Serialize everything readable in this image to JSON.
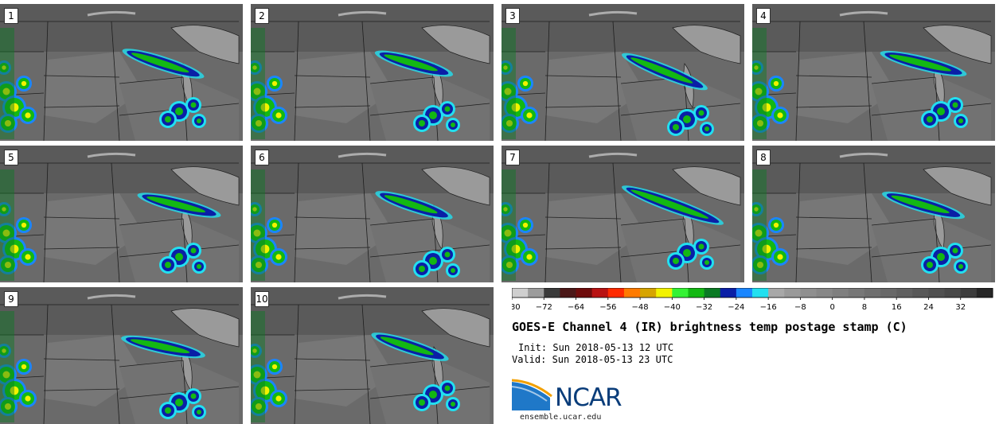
{
  "panels": [
    {
      "label": "1"
    },
    {
      "label": "2"
    },
    {
      "label": "3"
    },
    {
      "label": "4"
    },
    {
      "label": "5"
    },
    {
      "label": "6"
    },
    {
      "label": "7"
    },
    {
      "label": "8"
    },
    {
      "label": "9"
    },
    {
      "label": "10"
    }
  ],
  "chart_data": {
    "type": "heatmap",
    "title": "GOES-E Channel 4 (IR) brightness temp postage stamp (C)",
    "colorbar": {
      "range": [
        -80,
        40
      ],
      "tick_labels": [
        "−80",
        "−72",
        "−64",
        "−56",
        "−48",
        "−40",
        "−32",
        "−24",
        "−16",
        "−8",
        "0",
        "8",
        "16",
        "24",
        "32"
      ],
      "tick_values": [
        -80,
        -72,
        -64,
        -56,
        -48,
        -40,
        -32,
        -24,
        -16,
        -8,
        0,
        8,
        16,
        24,
        32
      ],
      "bin_colors": [
        "#cfcfcf",
        "#9c9c9c",
        "#3a3a3a",
        "#4b1717",
        "#6e0b0b",
        "#b81212",
        "#ff2a00",
        "#ff7a00",
        "#d6a400",
        "#f2f200",
        "#35f235",
        "#13b813",
        "#0a7a24",
        "#0a1fa6",
        "#1a86ff",
        "#22e0f0",
        "#a8a8a8",
        "#9a9a9a",
        "#8f8f8f",
        "#878787",
        "#7f7f7f",
        "#777777",
        "#6f6f6f",
        "#686868",
        "#606060",
        "#585858",
        "#505050",
        "#484848",
        "#3c3c3c",
        "#262626"
      ]
    }
  },
  "info": {
    "init": "Init: Sun 2018-05-13 12 UTC",
    "valid": "Valid: Sun 2018-05-13 23 UTC"
  },
  "logo": {
    "text": "NCAR",
    "site": "ensemble.ucar.edu"
  },
  "colors": {
    "background": "#6e6e6e",
    "lake": "#9a9a9a",
    "border": "#1e1e1e"
  }
}
